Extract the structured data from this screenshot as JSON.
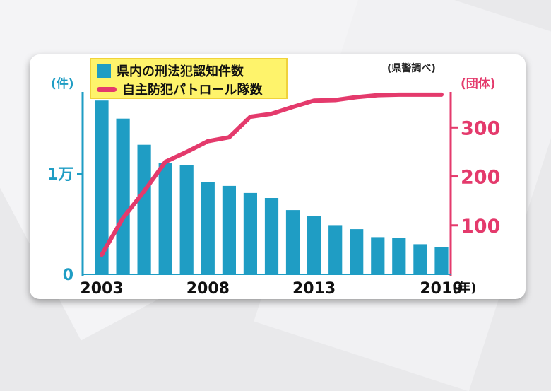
{
  "chart_data": {
    "type": "bar",
    "source": "(県警調べ)",
    "x": [
      2003,
      2004,
      2005,
      2006,
      2007,
      2008,
      2009,
      2010,
      2011,
      2012,
      2013,
      2014,
      2015,
      2016,
      2017,
      2018,
      2019
    ],
    "x_tick_labels": [
      "2003",
      "2008",
      "2013",
      "2019"
    ],
    "x_unit": "(年)",
    "left_axis": {
      "unit": "(件)",
      "ylim": [
        0,
        19000
      ],
      "tick_labels": [
        {
          "value": 0,
          "label": "0"
        },
        {
          "value": 10000,
          "label": "1万"
        }
      ]
    },
    "right_axis": {
      "unit": "(団体)",
      "ylim": [
        0,
        390
      ],
      "tick_labels": [
        {
          "value": 100,
          "label": "100"
        },
        {
          "value": 200,
          "label": "200"
        },
        {
          "value": 300,
          "label": "300"
        }
      ]
    },
    "series": [
      {
        "name": "県内の刑法犯認知件数",
        "kind": "bar",
        "axis": "left",
        "color": "#1f9dc4",
        "values": [
          17300,
          15500,
          12900,
          11100,
          10900,
          9200,
          8800,
          8100,
          7600,
          6400,
          5800,
          4900,
          4500,
          3700,
          3600,
          3000,
          2700
        ]
      },
      {
        "name": "自主防犯パトロール隊数",
        "kind": "line",
        "axis": "right",
        "color": "#e43a6c",
        "values": [
          40,
          115,
          170,
          230,
          250,
          272,
          280,
          322,
          328,
          342,
          355,
          356,
          362,
          366,
          367,
          367,
          367
        ]
      }
    ]
  }
}
